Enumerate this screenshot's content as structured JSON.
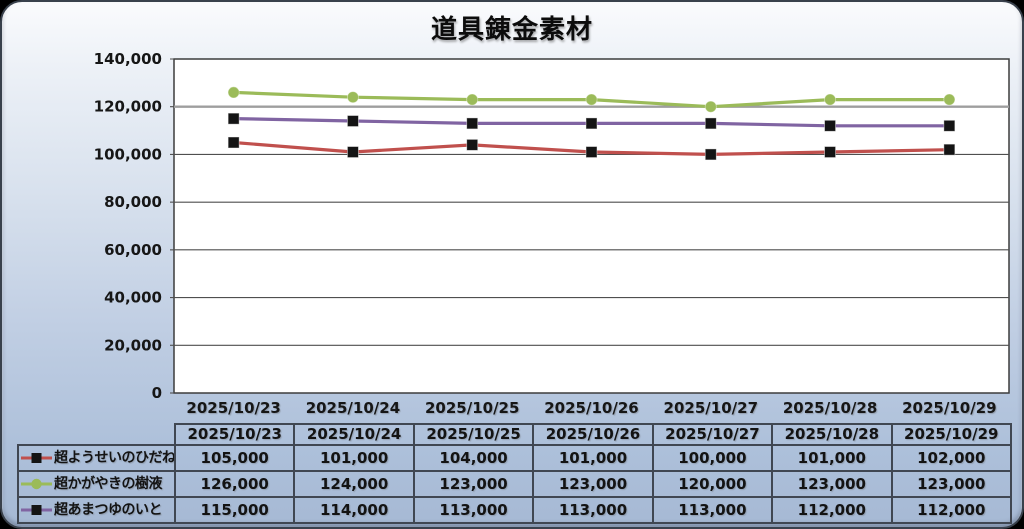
{
  "title": "道具錬金素材",
  "chart_data": {
    "type": "line",
    "title": "道具錬金素材",
    "categories": [
      "2025/10/23",
      "2025/10/24",
      "2025/10/25",
      "2025/10/26",
      "2025/10/27",
      "2025/10/28",
      "2025/10/29"
    ],
    "series": [
      {
        "name": "超ようせいのひだね",
        "color": "#c0504d",
        "marker": "square",
        "marker_color": "#141414",
        "values": [
          105000,
          101000,
          104000,
          101000,
          100000,
          101000,
          102000
        ]
      },
      {
        "name": "超かがやきの樹液",
        "color": "#9bbb59",
        "marker": "circle",
        "marker_color": "#9bbb59",
        "values": [
          126000,
          124000,
          123000,
          123000,
          120000,
          123000,
          123000
        ]
      },
      {
        "name": "超あまつゆのいと",
        "color": "#8064a2",
        "marker": "square",
        "marker_color": "#141414",
        "values": [
          115000,
          114000,
          113000,
          113000,
          113000,
          112000,
          112000
        ]
      }
    ],
    "xlabel": "",
    "ylabel": "",
    "ylim": [
      0,
      140000
    ],
    "ytick_step": 20000,
    "ytick_labels": [
      "0",
      "20,000",
      "40,000",
      "60,000",
      "80,000",
      "100,000",
      "120,000",
      "140,000"
    ],
    "grid": true,
    "legend_position": "table-left-column"
  },
  "colors": {
    "panel_gradient_top": "#fafbfd",
    "panel_gradient_bottom": "#a6b9d4",
    "plot_background": "#ffffff",
    "plot_border": "#3c3c3c",
    "gridline": "#4f4f4f",
    "gridline_120k": "#9e9e9e",
    "table_border": "#404752",
    "text": "#131313",
    "series_red": "#c0504d",
    "series_green": "#9bbb59",
    "series_purple": "#8064a2"
  }
}
